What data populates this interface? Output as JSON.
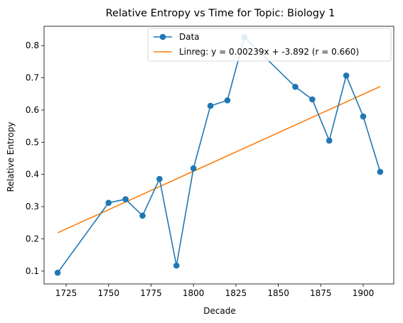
{
  "chart_data": {
    "type": "line",
    "title": "Relative Entropy vs Time for Topic: Biology 1",
    "xlabel": "Decade",
    "ylabel": "Relative Entropy",
    "xlim": [
      1712,
      1918
    ],
    "ylim": [
      0.06,
      0.86
    ],
    "xticks": [
      1725,
      1750,
      1775,
      1800,
      1825,
      1850,
      1875,
      1900
    ],
    "yticks": [
      0.1,
      0.2,
      0.3,
      0.4,
      0.5,
      0.6,
      0.7,
      0.8
    ],
    "grid": false,
    "legend_position": "top-right",
    "series": [
      {
        "name": "Data",
        "color": "#1f77b4",
        "marker": "circle",
        "x": [
          1720,
          1750,
          1760,
          1770,
          1780,
          1790,
          1800,
          1810,
          1820,
          1830,
          1860,
          1870,
          1880,
          1890,
          1900,
          1910
        ],
        "y": [
          0.095,
          0.312,
          0.323,
          0.272,
          0.386,
          0.117,
          0.419,
          0.613,
          0.63,
          0.826,
          0.672,
          0.633,
          0.505,
          0.707,
          0.58,
          0.408
        ]
      },
      {
        "name": "Linreg: y = 0.00239x + -3.892 (r = 0.660)",
        "color": "#ff7f0e",
        "marker": "none",
        "x": [
          1720,
          1910
        ],
        "y": [
          0.2188,
          0.6729
        ]
      }
    ]
  }
}
